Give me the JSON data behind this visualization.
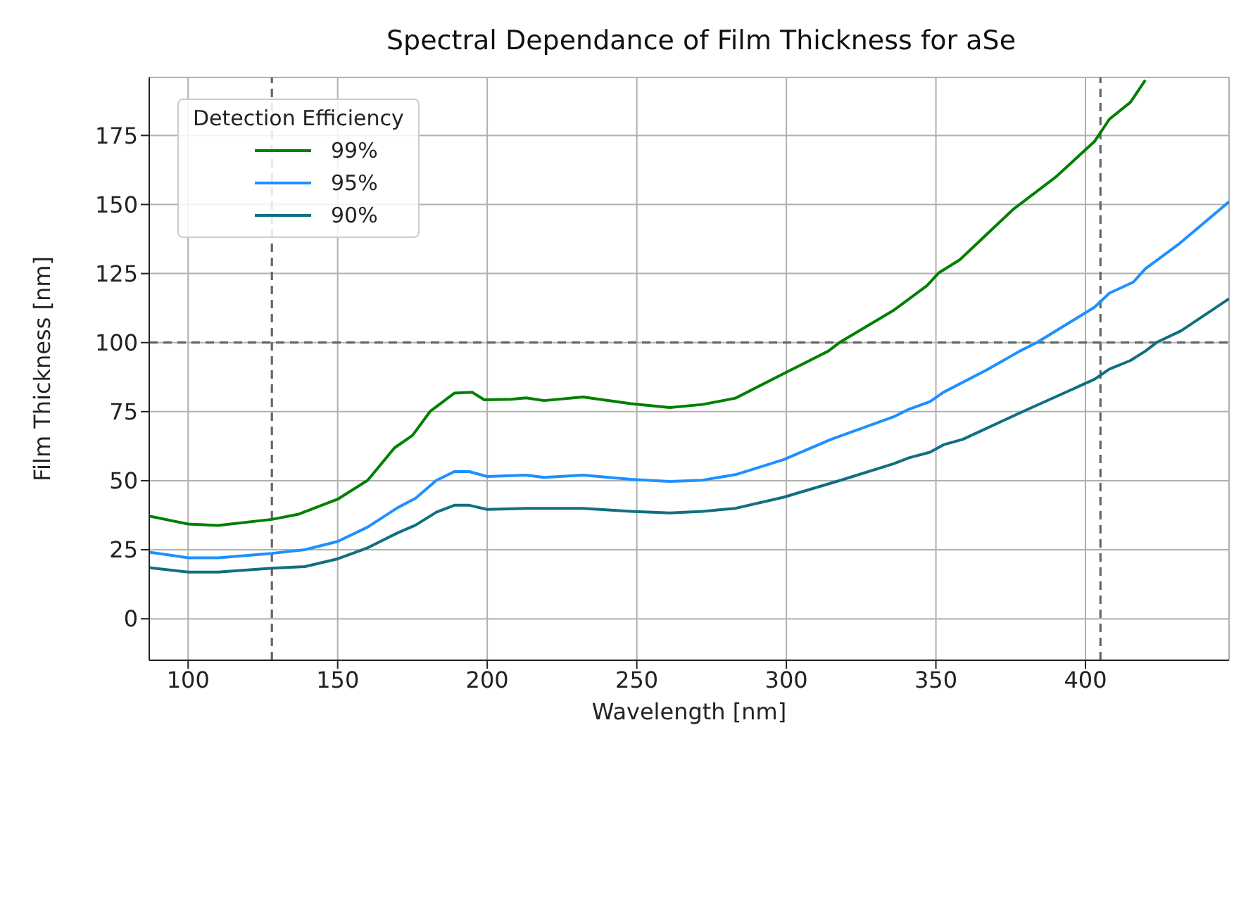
{
  "chart_data": {
    "type": "line",
    "title": "Spectral Dependance of Film Thickness for aSe",
    "xlabel": "Wavelength [nm]",
    "ylabel": "Film Thickness [nm]",
    "legend_title": "Detection Efficiency",
    "legend": "top left",
    "grid": true,
    "marker": "none",
    "line_style": "solid",
    "xlim": [
      87,
      448
    ],
    "xticks": [
      100,
      150,
      200,
      250,
      300,
      350,
      400
    ],
    "ylim": [
      -15,
      196
    ],
    "yticks": [
      0,
      25,
      50,
      75,
      100,
      125,
      150,
      175
    ],
    "ref_lines": [
      {
        "axis": "x",
        "value": 128,
        "color": "#666666",
        "line_style": "dashed"
      },
      {
        "axis": "x",
        "value": 405,
        "color": "#666666",
        "line_style": "dashed"
      },
      {
        "axis": "y",
        "value": 100,
        "color": "#666666",
        "line_style": "dashed"
      }
    ],
    "series": [
      {
        "name": "99%",
        "color": "#008000",
        "x": [
          87,
          100,
          110,
          128,
          137,
          150,
          160,
          169,
          175,
          181,
          189,
          195,
          199,
          208,
          213,
          219,
          232,
          248,
          261,
          272,
          283,
          299,
          314,
          318,
          336,
          347,
          351,
          358,
          376,
          390,
          403,
          408,
          415,
          420
        ],
        "values": [
          37.2,
          34.3,
          33.8,
          36,
          37.9,
          43.3,
          50.1,
          61.9,
          66.4,
          75.2,
          81.7,
          82,
          79.3,
          79.5,
          80,
          79,
          80.3,
          77.9,
          76.5,
          77.6,
          79.9,
          88.7,
          96.9,
          100.2,
          111.8,
          120.6,
          125.3,
          130,
          148.4,
          159.9,
          172.8,
          180.9,
          187,
          195
        ]
      },
      {
        "name": "95%",
        "color": "#1e90ff",
        "x": [
          87,
          100,
          110,
          128,
          139,
          150,
          160,
          170,
          176,
          183,
          189,
          194,
          200,
          213,
          219,
          232,
          248,
          261,
          272,
          283,
          299,
          315,
          336,
          341,
          348,
          352.5,
          367,
          378,
          384,
          403,
          408,
          416,
          420,
          431,
          448
        ],
        "values": [
          24.1,
          22.1,
          22.1,
          23.7,
          25,
          28,
          33.2,
          40.2,
          43.6,
          50.1,
          53.3,
          53.3,
          51.5,
          52,
          51.2,
          52,
          50.5,
          49.7,
          50.2,
          52.2,
          57.6,
          65,
          73.2,
          75.9,
          78.6,
          82,
          90.1,
          96.9,
          100.2,
          112.8,
          117.9,
          121.9,
          126.7,
          135.5,
          151
        ]
      },
      {
        "name": "90%",
        "color": "#106f80",
        "x": [
          87,
          100,
          110,
          128,
          139,
          150,
          160,
          170,
          176,
          183,
          189,
          194,
          200,
          213,
          232,
          248,
          261,
          272,
          283,
          299,
          318,
          336,
          341,
          348,
          352.5,
          359,
          378,
          403,
          408,
          415,
          420,
          424,
          432,
          448
        ],
        "values": [
          18.5,
          16.9,
          16.9,
          18.3,
          18.9,
          21.7,
          25.7,
          31.1,
          33.9,
          38.6,
          41.1,
          41.1,
          39.6,
          40,
          40,
          38.9,
          38.3,
          38.9,
          40,
          44,
          50.1,
          56.2,
          58.3,
          60.3,
          63,
          65,
          74.5,
          86.7,
          90.4,
          93.5,
          96.9,
          100.2,
          104.3,
          115.9
        ]
      }
    ]
  }
}
